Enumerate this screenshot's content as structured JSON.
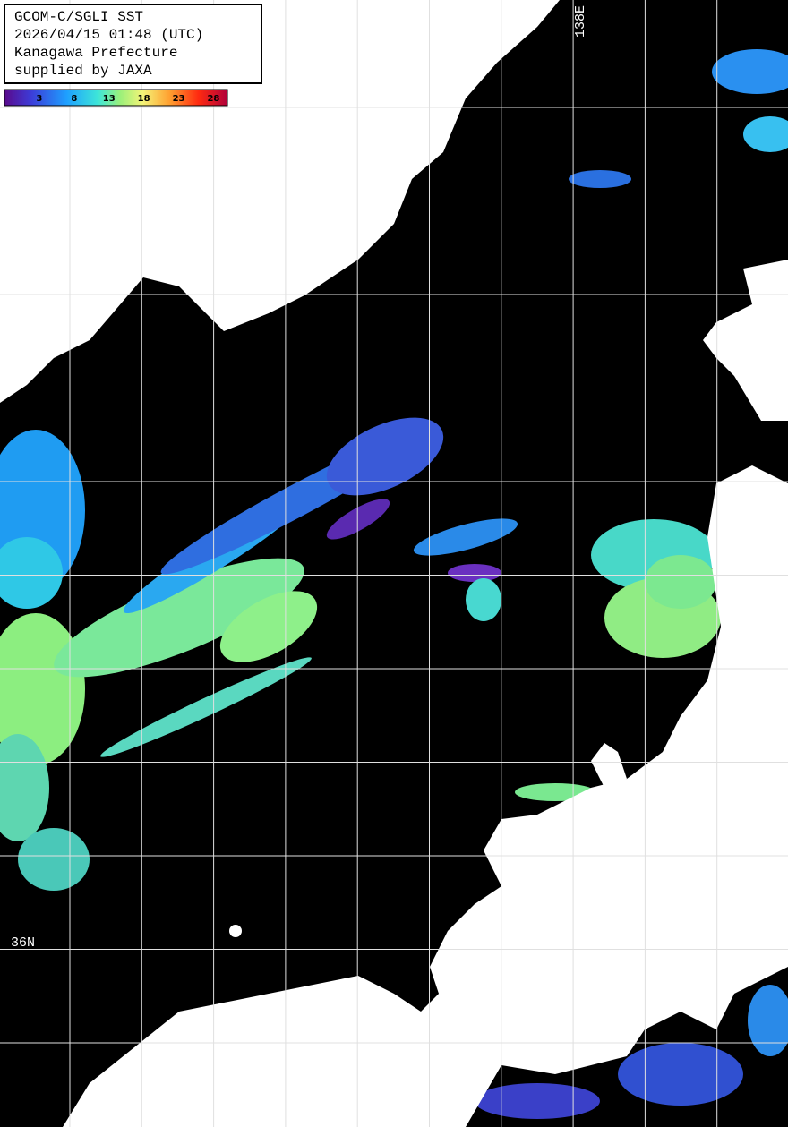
{
  "header": {
    "lines": [
      "GCOM-C/SGLI SST",
      "2026/04/15 01:48 (UTC)",
      "Kanagawa Prefecture",
      "supplied by JAXA"
    ]
  },
  "colorbar": {
    "range": [
      -2,
      30
    ],
    "ticks": [
      3,
      8,
      13,
      18,
      23,
      28
    ]
  },
  "grid_labels": {
    "longitude": "138E",
    "latitude": "36N"
  }
}
